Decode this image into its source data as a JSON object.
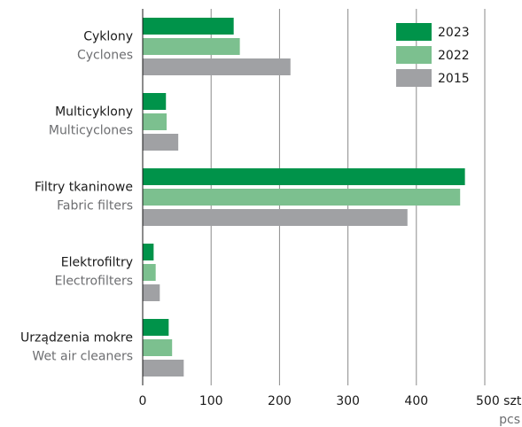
{
  "chart_data": {
    "type": "bar",
    "orientation": "horizontal",
    "categories": [
      "Cyklony",
      "Multicyklony",
      "Filtry tkaninowe",
      "Elektrofiltry",
      "Urządzenia mokre"
    ],
    "categories_en": [
      "Cyclones",
      "Multicyclones",
      "Fabric filters",
      "Electrofilters",
      "Wet air cleaners"
    ],
    "series": [
      {
        "name": "2023",
        "color": "#00934a",
        "values": [
          133,
          34,
          471,
          16,
          38
        ]
      },
      {
        "name": "2022",
        "color": "#7cc08f",
        "values": [
          142,
          35,
          464,
          19,
          43
        ]
      },
      {
        "name": "2015",
        "color": "#a0a1a4",
        "values": [
          216,
          52,
          387,
          25,
          60
        ]
      }
    ],
    "xlim": [
      0,
      500
    ],
    "xticks": [
      0,
      100,
      200,
      300,
      400,
      {
        "value": 500,
        "label": "500 szt."
      }
    ],
    "x_unit": "pcs",
    "grid": true,
    "legend": "upper right"
  }
}
